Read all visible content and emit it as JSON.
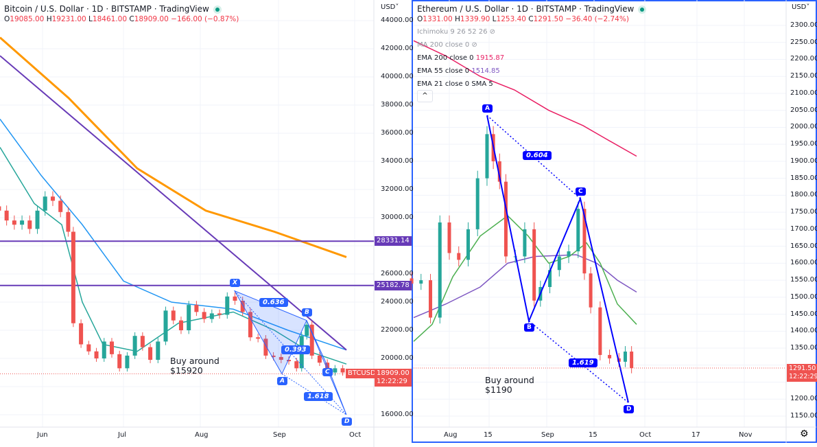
{
  "btc": {
    "title": "Bitcoin / U.S. Dollar · 1D · BITSTAMP · TradingView",
    "ohlc": {
      "o": "19085.00",
      "h": "19231.00",
      "l": "18461.00",
      "c": "18909.00",
      "chg": "−166.00 (−0.87%)"
    },
    "currency": "USD",
    "price_ticks": [
      "44000.00",
      "42000.00",
      "40000.00",
      "38000.00",
      "36000.00",
      "34000.00",
      "32000.00",
      "30000.00",
      "26000.00",
      "24000.00",
      "22000.00",
      "20000.00",
      "16000.00"
    ],
    "time_ticks": [
      "Jun",
      "Jul",
      "Aug",
      "Sep",
      "Oct"
    ],
    "hlines": [
      {
        "value": "28331.14"
      },
      {
        "value": "25182.78"
      }
    ],
    "last_price": "18909.00",
    "countdown": "12:22:29",
    "symbol_tag": "BTCUSD",
    "note": [
      "Buy around",
      "$15920"
    ],
    "pattern": {
      "points": [
        "X",
        "A",
        "B",
        "C",
        "D"
      ],
      "ratios": [
        "0.636",
        "0.393",
        "1.618"
      ]
    }
  },
  "eth": {
    "title": "Ethereum / U.S. Dollar · 1D · BITSTAMP · TradingView",
    "ohlc": {
      "o": "1331.00",
      "h": "1339.90",
      "l": "1253.40",
      "c": "1291.50",
      "chg": "−36.40 (−2.74%)"
    },
    "currency": "USD",
    "indicators": [
      {
        "label": "Ichimoku 9 26 52 26",
        "value": "",
        "hidden": true
      },
      {
        "label": "MA 200 close 0",
        "value": "",
        "hidden": true
      },
      {
        "label": "EMA 200 close 0",
        "value": "1915.87",
        "color": "#e91e63"
      },
      {
        "label": "EMA 55 close 0",
        "value": "1514.85",
        "color": "#7e57c2"
      },
      {
        "label": "EMA 21 close 0 SMA 5",
        "value": ""
      }
    ],
    "price_ticks": [
      "2300.00",
      "2250.00",
      "2200.00",
      "2150.00",
      "2100.00",
      "2050.00",
      "2000.00",
      "1950.00",
      "1900.00",
      "1850.00",
      "1800.00",
      "1750.00",
      "1700.00",
      "1650.00",
      "1600.00",
      "1550.00",
      "1500.00",
      "1450.00",
      "1400.00",
      "1350.00",
      "1200.00",
      "1150.00"
    ],
    "time_ticks": [
      "Aug",
      "15",
      "Sep",
      "15",
      "Oct",
      "17",
      "Nov"
    ],
    "last_price": "1291.50",
    "countdown": "12:22:29",
    "note": [
      "Buy around",
      "$1190"
    ],
    "pattern": {
      "points": [
        "A",
        "B",
        "C",
        "D"
      ],
      "ratios": [
        "0.604",
        "1.619"
      ]
    }
  },
  "colors": {
    "up": "#26a69a",
    "down": "#ef5350",
    "pattern": "#2962ff",
    "hline": "#673ab7",
    "ema200_btc": "#ff9800"
  },
  "chart_data": [
    {
      "type": "candlestick",
      "symbol": "BTCUSD",
      "ylim": [
        15000,
        45000
      ],
      "closes": [
        [
          "May15",
          30500
        ],
        [
          "May18",
          29800
        ],
        [
          "May21",
          29500
        ],
        [
          "May24",
          29800
        ],
        [
          "May27",
          29200
        ],
        [
          "May30",
          30500
        ],
        [
          "Jun2",
          31500
        ],
        [
          "Jun5",
          31200
        ],
        [
          "Jun8",
          30400
        ],
        [
          "Jun11",
          29000
        ],
        [
          "Jun13",
          22500
        ],
        [
          "Jun16",
          21000
        ],
        [
          "Jun19",
          20500
        ],
        [
          "Jun22",
          20000
        ],
        [
          "Jun25",
          21200
        ],
        [
          "Jun28",
          20300
        ],
        [
          "Jul1",
          19300
        ],
        [
          "Jul4",
          20200
        ],
        [
          "Jul7",
          21600
        ],
        [
          "Jul10",
          20800
        ],
        [
          "Jul13",
          19900
        ],
        [
          "Jul16",
          21200
        ],
        [
          "Jul19",
          23400
        ],
        [
          "Jul22",
          22700
        ],
        [
          "Jul25",
          22000
        ],
        [
          "Jul28",
          23800
        ],
        [
          "Jul31",
          23300
        ],
        [
          "Aug3",
          22800
        ],
        [
          "Aug6",
          23200
        ],
        [
          "Aug9",
          23100
        ],
        [
          "Aug12",
          24400
        ],
        [
          "Aug15",
          24100
        ],
        [
          "Aug18",
          23300
        ],
        [
          "Aug21",
          21500
        ],
        [
          "Aug24",
          21400
        ],
        [
          "Aug27",
          20200
        ],
        [
          "Aug30",
          20100
        ],
        [
          "Sep2",
          19900
        ],
        [
          "Sep5",
          19800
        ],
        [
          "Sep8",
          19300
        ],
        [
          "Sep10",
          21600
        ],
        [
          "Sep12",
          22400
        ],
        [
          "Sep14",
          20200
        ],
        [
          "Sep17",
          19700
        ],
        [
          "Sep20",
          19000
        ],
        [
          "Sep23",
          19300
        ],
        [
          "Sep26",
          19000
        ],
        [
          "Sep28",
          18909
        ]
      ]
    },
    {
      "type": "candlestick",
      "symbol": "ETHUSD",
      "ylim": [
        1125,
        2325
      ],
      "closes": [
        [
          "Jul20",
          1540
        ],
        [
          "Jul23",
          1550
        ],
        [
          "Jul26",
          1440
        ],
        [
          "Jul29",
          1720
        ],
        [
          "Aug1",
          1630
        ],
        [
          "Aug4",
          1610
        ],
        [
          "Aug7",
          1700
        ],
        [
          "Aug10",
          1850
        ],
        [
          "Aug13",
          1980
        ],
        [
          "Aug15",
          1900
        ],
        [
          "Aug17",
          1840
        ],
        [
          "Aug19",
          1620
        ],
        [
          "Aug22",
          1620
        ],
        [
          "Aug25",
          1700
        ],
        [
          "Aug28",
          1490
        ],
        [
          "Aug30",
          1530
        ],
        [
          "Sep2",
          1580
        ],
        [
          "Sep5",
          1620
        ],
        [
          "Sep8",
          1635
        ],
        [
          "Sep11",
          1760
        ],
        [
          "Sep13",
          1570
        ],
        [
          "Sep15",
          1470
        ],
        [
          "Sep18",
          1330
        ],
        [
          "Sep21",
          1320
        ],
        [
          "Sep24",
          1310
        ],
        [
          "Sep26",
          1340
        ],
        [
          "Sep28",
          1291.5
        ]
      ]
    }
  ]
}
